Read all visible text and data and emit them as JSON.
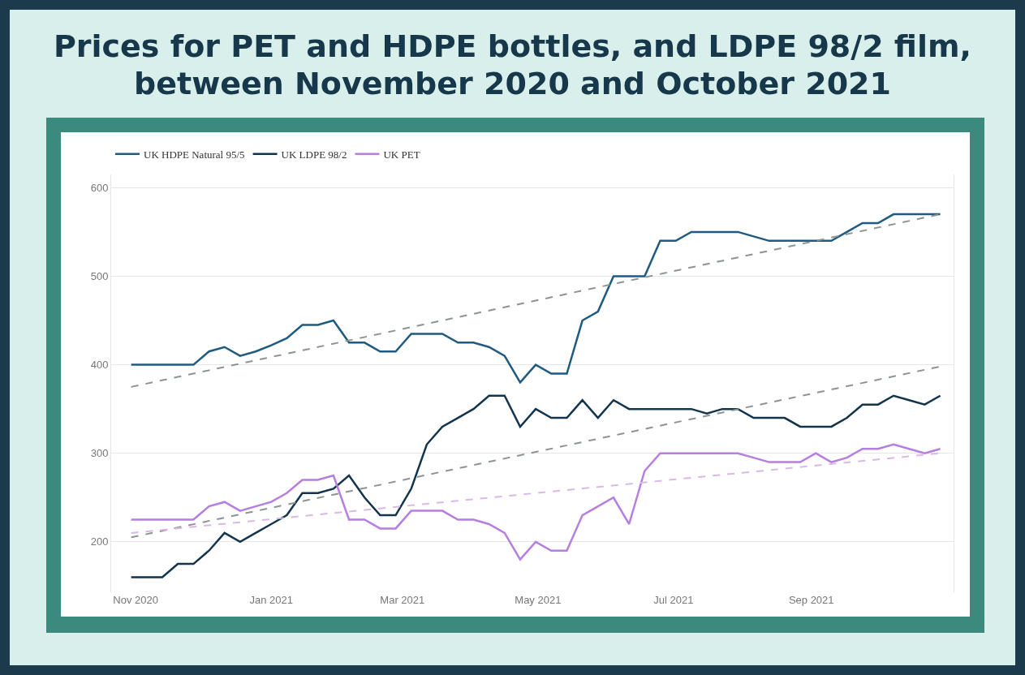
{
  "chart_data": {
    "type": "line",
    "title": "Prices for PET and HDPE bottles, and LDPE 98/2 film, between November 2020 and October 2021",
    "x": [
      "2020-10-30",
      "2020-11-06",
      "2020-11-13",
      "2020-11-20",
      "2020-11-27",
      "2020-12-04",
      "2020-12-11",
      "2020-12-18",
      "2020-12-25",
      "2021-01-01",
      "2021-01-08",
      "2021-01-15",
      "2021-01-22",
      "2021-01-29",
      "2021-02-05",
      "2021-02-12",
      "2021-02-19",
      "2021-02-26",
      "2021-03-05",
      "2021-03-12",
      "2021-03-19",
      "2021-03-26",
      "2021-04-02",
      "2021-04-09",
      "2021-04-16",
      "2021-04-23",
      "2021-04-30",
      "2021-05-07",
      "2021-05-14",
      "2021-05-21",
      "2021-05-28",
      "2021-06-04",
      "2021-06-11",
      "2021-06-18",
      "2021-06-25",
      "2021-07-02",
      "2021-07-09",
      "2021-07-16",
      "2021-07-23",
      "2021-07-30",
      "2021-08-06",
      "2021-08-13",
      "2021-08-20",
      "2021-08-27",
      "2021-09-03",
      "2021-09-10",
      "2021-09-17",
      "2021-09-24",
      "2021-10-01",
      "2021-10-08",
      "2021-10-15",
      "2021-10-22",
      "2021-10-29"
    ],
    "series": [
      {
        "name": "UK HDPE Natural 95/5",
        "color": "#1f5a80",
        "values": [
          400,
          400,
          400,
          400,
          400,
          415,
          420,
          410,
          415,
          422,
          430,
          445,
          445,
          450,
          425,
          425,
          415,
          415,
          435,
          435,
          435,
          425,
          425,
          420,
          410,
          380,
          400,
          390,
          390,
          450,
          460,
          500,
          500,
          500,
          540,
          540,
          550,
          550,
          550,
          550,
          545,
          540,
          540,
          540,
          540,
          540,
          550,
          560,
          560,
          570,
          570,
          570,
          570
        ]
      },
      {
        "name": "UK LDPE 98/2",
        "color": "#12344d",
        "values": [
          160,
          160,
          160,
          175,
          175,
          190,
          210,
          200,
          210,
          220,
          230,
          255,
          255,
          260,
          275,
          250,
          230,
          230,
          260,
          310,
          330,
          340,
          350,
          365,
          365,
          330,
          350,
          340,
          340,
          360,
          340,
          360,
          350,
          350,
          350,
          350,
          350,
          345,
          350,
          350,
          340,
          340,
          340,
          330,
          330,
          330,
          340,
          355,
          355,
          365,
          360,
          355,
          365
        ]
      },
      {
        "name": "UK PET",
        "color": "#b57ee0",
        "values": [
          225,
          225,
          225,
          225,
          225,
          240,
          245,
          235,
          240,
          245,
          255,
          270,
          270,
          275,
          225,
          225,
          215,
          215,
          235,
          235,
          235,
          225,
          225,
          220,
          210,
          180,
          200,
          190,
          190,
          230,
          240,
          250,
          220,
          280,
          300,
          300,
          300,
          300,
          300,
          300,
          295,
          290,
          290,
          290,
          300,
          290,
          295,
          305,
          305,
          310,
          305,
          300,
          305
        ]
      },
      {
        "type": "line",
        "color": "#8c9494",
        "line_style": "dashed",
        "x": [
          "2020-10-30",
          "2021-10-29"
        ],
        "values": [
          375,
          570
        ]
      },
      {
        "type": "line",
        "color": "#8c9494",
        "line_style": "dashed",
        "x": [
          "2020-10-30",
          "2021-10-29"
        ],
        "values": [
          205,
          398
        ]
      },
      {
        "type": "line",
        "color": "#d9b8e8",
        "line_style": "dashed",
        "x": [
          "2020-10-30",
          "2021-10-29"
        ],
        "values": [
          210,
          300
        ]
      }
    ],
    "xlim": [
      "2020-10-21",
      "2021-11-04"
    ],
    "xticks": [
      {
        "value": "2020-11-01",
        "label": "Nov 2020"
      },
      {
        "value": "2021-01-01",
        "label": "Jan 2021"
      },
      {
        "value": "2021-03-01",
        "label": "Mar 2021"
      },
      {
        "value": "2021-05-01",
        "label": "May 2021"
      },
      {
        "value": "2021-07-01",
        "label": "Jul 2021"
      },
      {
        "value": "2021-09-01",
        "label": "Sep 2021"
      }
    ],
    "ylim": [
      143,
      615
    ],
    "yticks": [
      200,
      300,
      400,
      500,
      600
    ],
    "grid": "y",
    "legend": "top left"
  }
}
